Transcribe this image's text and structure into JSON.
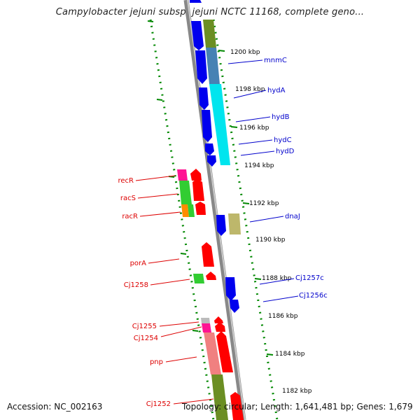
{
  "header": {
    "title": "Campylobacter jejuni subsp. jejuni NCTC 11168, complete geno..."
  },
  "footer": {
    "accession": "Accession: NC_002163",
    "topology": "Topology: circular; Length: 1,641,481 bp; Genes: 1,679"
  },
  "scale_labels": [
    "1200 kbp",
    "1198 kbp",
    "1196 kbp",
    "1194 kbp",
    "1192 kbp",
    "1190 kbp",
    "1188 kbp",
    "1186 kbp",
    "1184 kbp",
    "1182 kbp"
  ],
  "forward_genes": [
    "recR",
    "racS",
    "racR",
    "porA",
    "Cj1258",
    "Cj1255",
    "Cj1254",
    "pnp",
    "Cj1252"
  ],
  "reverse_genes": [
    "mnmC",
    "hydA",
    "hydB",
    "hydC",
    "hydD",
    "dnaJ",
    "Cj1257c",
    "Cj1256c"
  ],
  "colors": {
    "forward": "#ff0000",
    "reverse": "#0000ff",
    "ruler": "#008800",
    "backbone": "#888888"
  }
}
